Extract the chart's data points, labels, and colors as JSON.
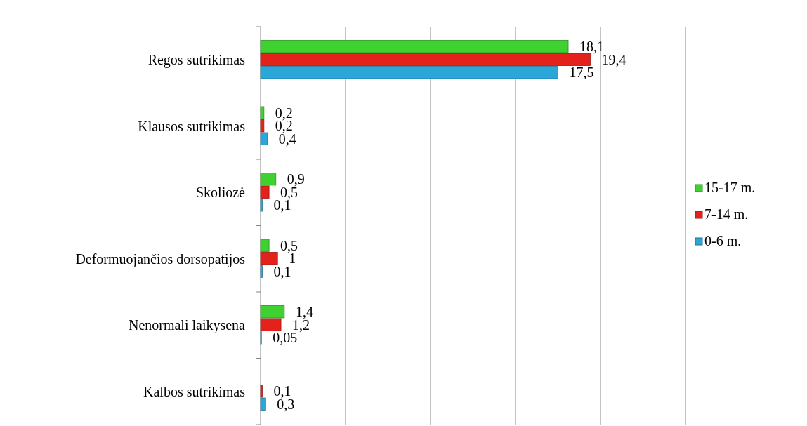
{
  "chart_data": {
    "type": "bar",
    "orientation": "horizontal",
    "categories": [
      "Regos sutrikimas",
      "Klausos sutrikimas",
      "Skoliozė",
      "Deformuojančios dorsopatijos",
      "Nenormali laikysena",
      "Kalbos sutrikimas"
    ],
    "series": [
      {
        "name": "15-17 m.",
        "color": "#3fd12f",
        "values": [
          18.1,
          0.2,
          0.9,
          0.5,
          1.4,
          null
        ],
        "value_labels": [
          "18,1",
          "0,2",
          "0,9",
          "0,5",
          "1,4",
          null
        ]
      },
      {
        "name": "7-14 m.",
        "color": "#e3221c",
        "values": [
          19.4,
          0.2,
          0.5,
          1,
          1.2,
          0.1
        ],
        "value_labels": [
          "19,4",
          "0,2",
          "0,5",
          "1",
          "1,2",
          "0,1"
        ]
      },
      {
        "name": "0-6 m.",
        "color": "#2aa6d9",
        "values": [
          17.5,
          0.4,
          0.1,
          0.1,
          0.05,
          0.3
        ],
        "value_labels": [
          "17,5",
          "0,4",
          "0,1",
          "0,1",
          "0,05",
          "0,3"
        ]
      }
    ],
    "xlim": [
      0,
      25
    ],
    "xticks": [
      {
        "value": 0,
        "label": null
      },
      {
        "value": 5,
        "label": null
      },
      {
        "value": 10,
        "label": null
      },
      {
        "value": 15,
        "label": null
      },
      {
        "value": 20,
        "label": null
      },
      {
        "value": 25,
        "label": null
      }
    ],
    "grid": "x",
    "legend": "right",
    "tick_labels": "y"
  }
}
